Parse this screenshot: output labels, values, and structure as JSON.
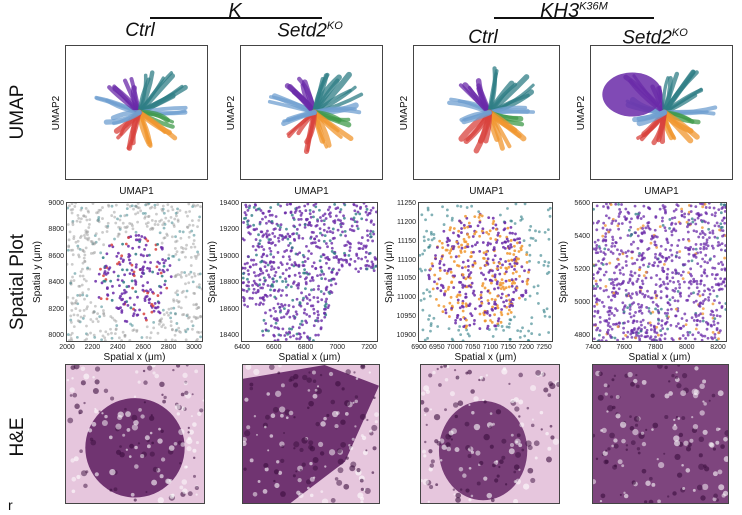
{
  "groups": [
    {
      "name": "K",
      "sup": ""
    },
    {
      "name": "KH3",
      "sup": "K36M"
    }
  ],
  "conditions": [
    {
      "base": "Ctrl",
      "sup": ""
    },
    {
      "base": "Setd2",
      "sup": "KO"
    },
    {
      "base": "Ctrl",
      "sup": ""
    },
    {
      "base": "Setd2",
      "sup": "KO"
    }
  ],
  "rows": [
    "UMAP",
    "Spatial Plot",
    "H&E"
  ],
  "umap": {
    "xlabel": "UMAP1",
    "ylabel": "UMAP2"
  },
  "spatial": {
    "xlabel": "Spatial x (μm)",
    "ylabel": "Spatial y (μm)",
    "panels": [
      {
        "xticks": [
          "2000",
          "2200",
          "2400",
          "2600",
          "2800",
          "3000"
        ],
        "yticks": [
          "9000",
          "8800",
          "8600",
          "8400",
          "8200",
          "8000"
        ]
      },
      {
        "xticks": [
          "6400",
          "6600",
          "6800",
          "7000",
          "7200"
        ],
        "yticks": [
          "19400",
          "19200",
          "19000",
          "18800",
          "18600",
          "18400"
        ]
      },
      {
        "xticks": [
          "6900",
          "6950",
          "7000",
          "7050",
          "7100",
          "7150",
          "7200",
          "7250"
        ],
        "yticks": [
          "11250",
          "11200",
          "11150",
          "11100",
          "11050",
          "11000",
          "10950",
          "10900"
        ]
      },
      {
        "xticks": [
          "7400",
          "7600",
          "7800",
          "8000",
          "8200"
        ],
        "yticks": [
          "5600",
          "5400",
          "5200",
          "5000",
          "4800"
        ]
      }
    ]
  },
  "palette": {
    "purple": "#6a2aa8",
    "teal": "#2f7d86",
    "green": "#3f9a4a",
    "red": "#d8413c",
    "orange": "#f0962e",
    "blue": "#6f9fd0",
    "he_dark": "#5b1a5e",
    "he_light": "#e6c6dd"
  },
  "corner_mark": "r"
}
